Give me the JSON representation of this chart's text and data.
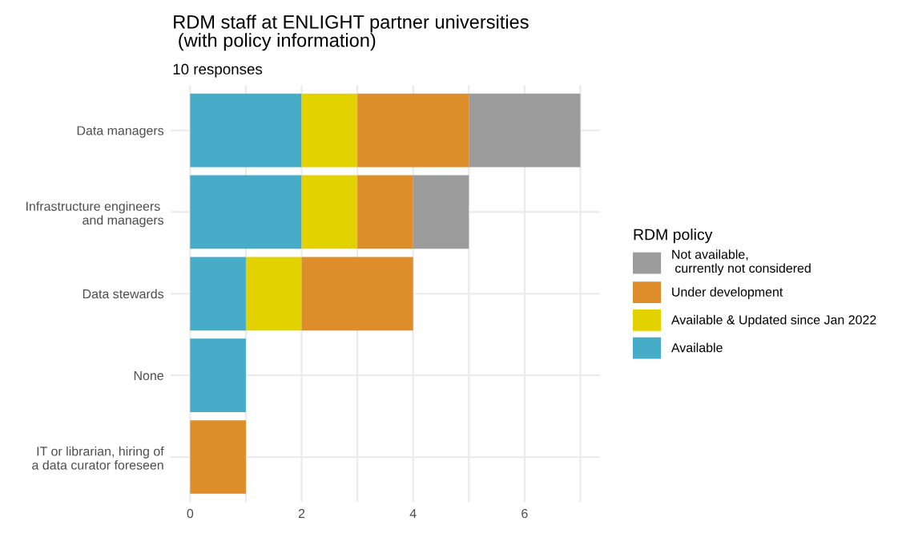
{
  "chart_data": {
    "type": "bar",
    "orientation": "horizontal",
    "stacked": true,
    "title": "RDM staff at ENLIGHT partner universities\n (with policy information)",
    "subtitle": "10 responses",
    "legend_title": "RDM policy",
    "categories": [
      "Data managers",
      "Infrastructure engineers \nand managers",
      "Data stewards",
      "None",
      "IT or librarian, hiring of\na data curator foreseen"
    ],
    "series": [
      {
        "name": "Available",
        "color": "#46acc8",
        "values": [
          2,
          2,
          1,
          1,
          null
        ]
      },
      {
        "name": "Available & Updated since Jan 2022",
        "color": "#e2d200",
        "values": [
          1,
          1,
          1,
          null,
          null
        ]
      },
      {
        "name": "Under development",
        "color": "#dd8d29",
        "values": [
          2,
          1,
          2,
          null,
          1
        ]
      },
      {
        "name": "Not available,\n currently not considered",
        "color": "#9c9c9c",
        "values": [
          2,
          1,
          null,
          null,
          null
        ]
      }
    ],
    "xlim": [
      -0.35,
      7.35
    ],
    "xticks": [
      0,
      {
        "value": 1,
        "label": null
      },
      2,
      {
        "value": 3,
        "label": null
      },
      4,
      {
        "value": 5,
        "label": null
      },
      6,
      {
        "value": 7,
        "label": null
      }
    ],
    "grid": true,
    "legend": "right"
  }
}
